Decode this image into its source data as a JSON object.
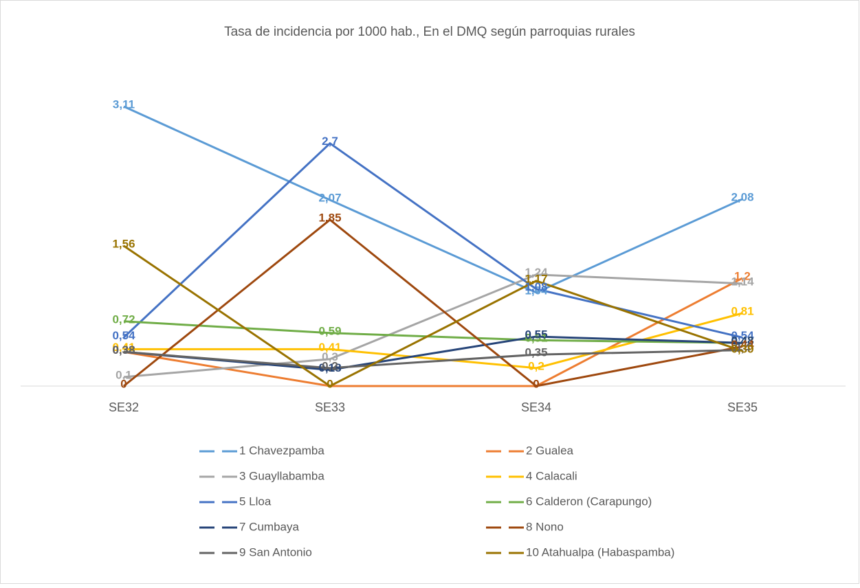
{
  "chart_data": {
    "type": "line",
    "title": "Tasa de incidencia por 1000 hab., En el DMQ según parroquias rurales",
    "categories": [
      "SE32",
      "SE33",
      "SE34",
      "SE35"
    ],
    "ylim": [
      0,
      3.5
    ],
    "series": [
      {
        "name": "1 Chavezpamba",
        "color": "#5B9BD5",
        "values": [
          3.11,
          2.07,
          1.04,
          2.08
        ],
        "value_labels": [
          "3,11",
          "2,07",
          "1,04",
          "2,08"
        ]
      },
      {
        "name": "2 Gualea",
        "color": "#ED7D31",
        "values": [
          0.38,
          0,
          0,
          1.2
        ],
        "value_labels": [
          "0,38",
          "0",
          "0",
          "1,2"
        ]
      },
      {
        "name": "3 Guayllabamba",
        "color": "#A5A5A5",
        "values": [
          0.1,
          0.3,
          1.24,
          1.14
        ],
        "value_labels": [
          "0,1",
          "0,3",
          "1,24",
          "1,14"
        ]
      },
      {
        "name": "4 Calacali",
        "color": "#FFC000",
        "values": [
          0.41,
          0.41,
          0.2,
          0.81
        ],
        "value_labels": [
          "0,41",
          "0,41",
          "0,2",
          "0,81"
        ]
      },
      {
        "name": "5 Lloa",
        "color": "#4472C4",
        "values": [
          0.54,
          2.7,
          1.08,
          0.54
        ],
        "value_labels": [
          "0,54",
          "2,7",
          "1,08",
          "0,54"
        ]
      },
      {
        "name": "6 Calderon (Carapungo)",
        "color": "#70AD47",
        "values": [
          0.72,
          0.59,
          0.51,
          0.48
        ],
        "value_labels": [
          "0,72",
          "0,59",
          "0,51",
          "0,48"
        ]
      },
      {
        "name": "7 Cumbaya",
        "color": "#264478",
        "values": [
          0.38,
          0.18,
          0.55,
          0.48
        ],
        "value_labels": [
          "0,38",
          "0,18",
          "0,55",
          "0,48"
        ]
      },
      {
        "name": "8 Nono",
        "color": "#9E480E",
        "values": [
          0,
          1.85,
          0,
          0.44
        ],
        "value_labels": [
          "0",
          "1,85",
          "0",
          "0,44"
        ]
      },
      {
        "name": "9 San Antonio",
        "color": "#636363",
        "values": [
          0.38,
          0.2,
          0.35,
          0.4
        ],
        "value_labels": [
          "0,38",
          "0,2",
          "0,35",
          "0,4"
        ]
      },
      {
        "name": "10 Atahualpa (Habaspamba)",
        "color": "#997300",
        "values": [
          1.56,
          0,
          1.17,
          0.39
        ],
        "value_labels": [
          "1,56",
          "0",
          "1,17",
          "0,39"
        ]
      }
    ]
  }
}
